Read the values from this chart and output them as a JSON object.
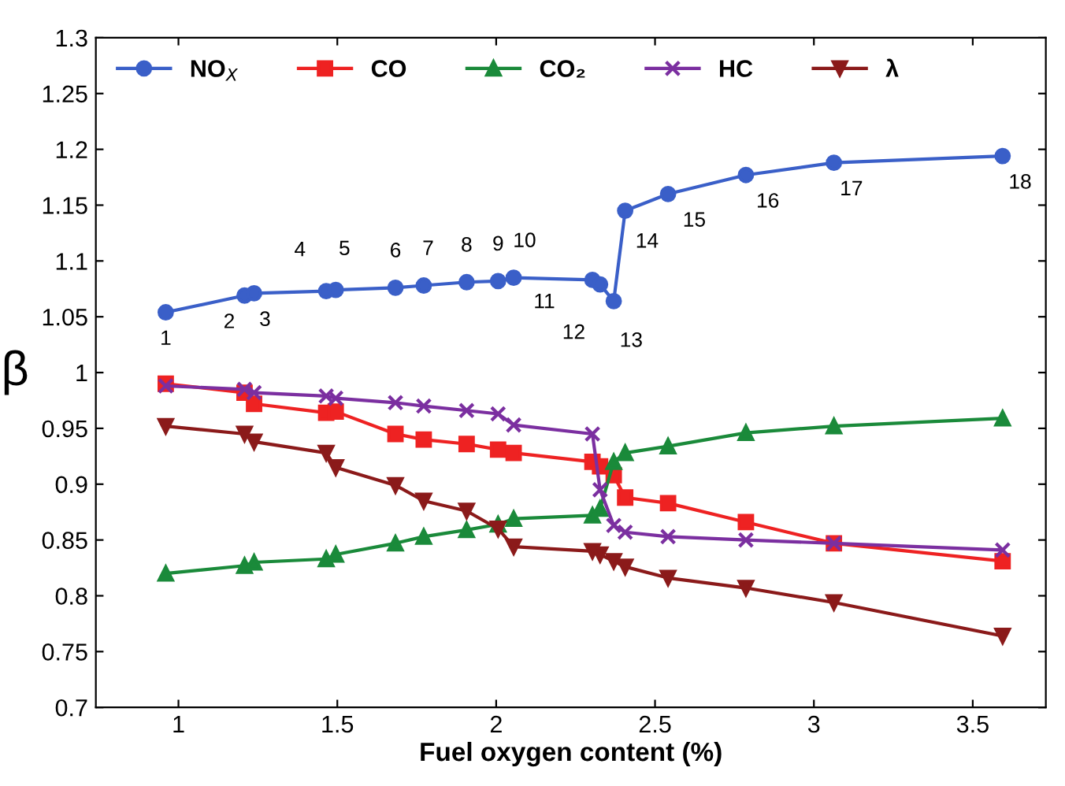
{
  "chart_data": {
    "type": "line",
    "xlabel": "Fuel oxygen content (%)",
    "ylabel": "β",
    "x": [
      0.96,
      1.208,
      1.238,
      1.465,
      1.495,
      1.683,
      1.772,
      1.907,
      2.006,
      2.055,
      2.303,
      2.327,
      2.37,
      2.406,
      2.541,
      2.786,
      3.063,
      3.594
    ],
    "series": [
      {
        "name": "NO$_{X}$",
        "color": "#3a5fc8",
        "marker": "circle",
        "values": [
          1.054,
          1.069,
          1.071,
          1.073,
          1.074,
          1.076,
          1.078,
          1.081,
          1.082,
          1.085,
          1.083,
          1.079,
          1.064,
          1.145,
          1.16,
          1.177,
          1.188,
          1.194
        ]
      },
      {
        "name": "CO",
        "color": "#ee2222",
        "marker": "square",
        "values": [
          0.99,
          0.982,
          0.972,
          0.964,
          0.965,
          0.945,
          0.94,
          0.936,
          0.931,
          0.928,
          0.92,
          0.916,
          0.908,
          0.888,
          0.883,
          0.866,
          0.847,
          0.831
        ]
      },
      {
        "name": "CO₂",
        "color": "#1a8a3a",
        "marker": "triangle",
        "values": [
          0.82,
          0.827,
          0.83,
          0.833,
          0.837,
          0.847,
          0.853,
          0.859,
          0.864,
          0.869,
          0.872,
          0.878,
          0.92,
          0.928,
          0.934,
          0.946,
          0.952,
          0.959
        ]
      },
      {
        "name": "HC",
        "color": "#7b2fa0",
        "marker": "cross",
        "values": [
          0.988,
          0.985,
          0.982,
          0.979,
          0.977,
          0.973,
          0.97,
          0.966,
          0.963,
          0.953,
          0.945,
          0.895,
          0.863,
          0.857,
          0.853,
          0.85,
          0.847,
          0.841
        ]
      },
      {
        "name": "λ",
        "color": "#8b1a1a",
        "marker": "triangle_down",
        "values": [
          0.952,
          0.945,
          0.938,
          0.928,
          0.915,
          0.899,
          0.885,
          0.876,
          0.86,
          0.844,
          0.84,
          0.837,
          0.831,
          0.826,
          0.816,
          0.807,
          0.794,
          0.764
        ]
      }
    ],
    "annotations": [
      {
        "text": "1",
        "x": 0.96,
        "y": 1.054
      },
      {
        "text": "2",
        "x": 1.208,
        "y": 1.069
      },
      {
        "text": "3",
        "x": 1.238,
        "y": 1.071
      },
      {
        "text": "4",
        "x": 1.465,
        "y": 1.073
      },
      {
        "text": "5",
        "x": 1.495,
        "y": 1.074
      },
      {
        "text": "6",
        "x": 1.683,
        "y": 1.076
      },
      {
        "text": "7",
        "x": 1.772,
        "y": 1.078
      },
      {
        "text": "8",
        "x": 1.907,
        "y": 1.081
      },
      {
        "text": "9",
        "x": 2.006,
        "y": 1.082
      },
      {
        "text": "10",
        "x": 2.055,
        "y": 1.085
      },
      {
        "text": "11",
        "x": 2.303,
        "y": 1.083
      },
      {
        "text": "12",
        "x": 2.327,
        "y": 1.079
      },
      {
        "text": "13",
        "x": 2.37,
        "y": 1.064
      },
      {
        "text": "14",
        "x": 2.406,
        "y": 1.145
      },
      {
        "text": "15",
        "x": 2.541,
        "y": 1.16
      },
      {
        "text": "16",
        "x": 2.786,
        "y": 1.177
      },
      {
        "text": "17",
        "x": 3.063,
        "y": 1.188
      },
      {
        "text": "18",
        "x": 3.594,
        "y": 1.194
      }
    ],
    "xlim": [
      0.74,
      3.73
    ],
    "xticks": [
      1,
      1.5,
      2,
      2.5,
      3,
      3.5
    ],
    "ylim": [
      0.7,
      1.3
    ],
    "yticks": [
      0.7,
      0.75,
      0.8,
      0.85,
      0.9,
      0.95,
      1,
      1.05,
      1.1,
      1.15,
      1.2,
      1.25,
      1.3
    ],
    "grid": false,
    "legend": "top left",
    "line_style": "solid"
  }
}
